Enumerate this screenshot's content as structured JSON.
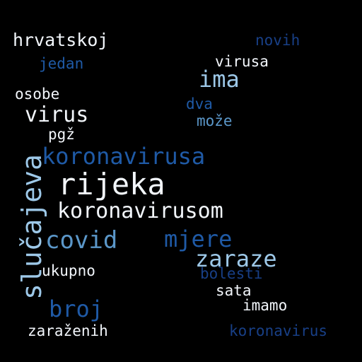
{
  "palette": {
    "background": "#000000",
    "white": "#f2f6fb",
    "light_blue": "#9dc8e8",
    "mid_blue": "#5b97c9",
    "dark_blue": "#1f5aa6",
    "navy": "#183f86"
  },
  "words": [
    {
      "text": "hrvatskoj",
      "tone": "white"
    },
    {
      "text": "novih",
      "tone": "navy"
    },
    {
      "text": "jedan",
      "tone": "dark_blue"
    },
    {
      "text": "virusa",
      "tone": "white"
    },
    {
      "text": "ima",
      "tone": "light_blue"
    },
    {
      "text": "osobe",
      "tone": "white"
    },
    {
      "text": "dva",
      "tone": "dark_blue"
    },
    {
      "text": "virus",
      "tone": "white"
    },
    {
      "text": "može",
      "tone": "mid_blue"
    },
    {
      "text": "pgž",
      "tone": "white"
    },
    {
      "text": "koronavirusa",
      "tone": "dark_blue"
    },
    {
      "text": "slučajeva",
      "tone": "light_blue"
    },
    {
      "text": "rijeka",
      "tone": "white"
    },
    {
      "text": "koronavirusom",
      "tone": "white"
    },
    {
      "text": "covid",
      "tone": "mid_blue"
    },
    {
      "text": "mjere",
      "tone": "dark_blue"
    },
    {
      "text": "zaraze",
      "tone": "light_blue"
    },
    {
      "text": "ukupno",
      "tone": "white"
    },
    {
      "text": "bolesti",
      "tone": "navy"
    },
    {
      "text": "sata",
      "tone": "white"
    },
    {
      "text": "broj",
      "tone": "dark_blue"
    },
    {
      "text": "imamo",
      "tone": "white"
    },
    {
      "text": "zaraženih",
      "tone": "white"
    },
    {
      "text": "koronavirus",
      "tone": "navy"
    }
  ]
}
